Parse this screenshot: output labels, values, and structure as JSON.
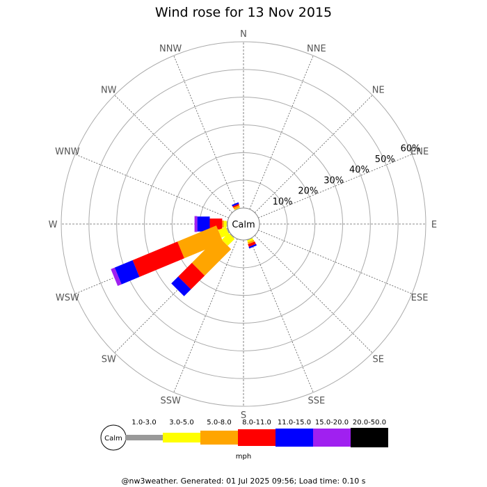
{
  "chart_data": {
    "type": "wind-rose",
    "title": "Wind rose for 13 Nov 2015",
    "directions": [
      "N",
      "NNE",
      "NE",
      "ENE",
      "E",
      "ESE",
      "SE",
      "SSE",
      "S",
      "SSW",
      "SW",
      "WSW",
      "W",
      "WNW",
      "NW",
      "NNW"
    ],
    "radial_ticks": [
      "10%",
      "20%",
      "30%",
      "40%",
      "50%",
      "60%"
    ],
    "radial_values": [
      10,
      20,
      30,
      40,
      50,
      60
    ],
    "radial_max": 60,
    "calm_label": "Calm",
    "speed_bins": [
      "1.0-3.0",
      "3.0-5.0",
      "5.0-8.0",
      "8.0-11.0",
      "11.0-15.0",
      "15.0-20.0",
      "20.0-50.0"
    ],
    "bin_colors": [
      "#999999",
      "#ffff00",
      "#ffa500",
      "#ff0000",
      "#0000ff",
      "#a020f0",
      "#000000"
    ],
    "units": "mph",
    "series": [
      {
        "direction": "NNW",
        "values": [
          0.1,
          0.2,
          0.8,
          0.5,
          0.6,
          0,
          0
        ]
      },
      {
        "direction": "W",
        "values": [
          0.3,
          1.0,
          0.6,
          4.5,
          4.5,
          1.0,
          0
        ]
      },
      {
        "direction": "WSW",
        "values": [
          0.5,
          3.0,
          15.2,
          17.5,
          7.0,
          1.5,
          0
        ]
      },
      {
        "direction": "SW",
        "values": [
          0.3,
          3.5,
          13.5,
          7.0,
          3.5,
          0,
          0
        ]
      },
      {
        "direction": "SSE",
        "values": [
          0.2,
          0.7,
          0.7,
          1.0,
          0.6,
          0,
          0
        ]
      }
    ],
    "grid": true
  },
  "footer": "@nw3weather. Generated: 01 Jul 2025 09:56; Load time: 0.10 s"
}
